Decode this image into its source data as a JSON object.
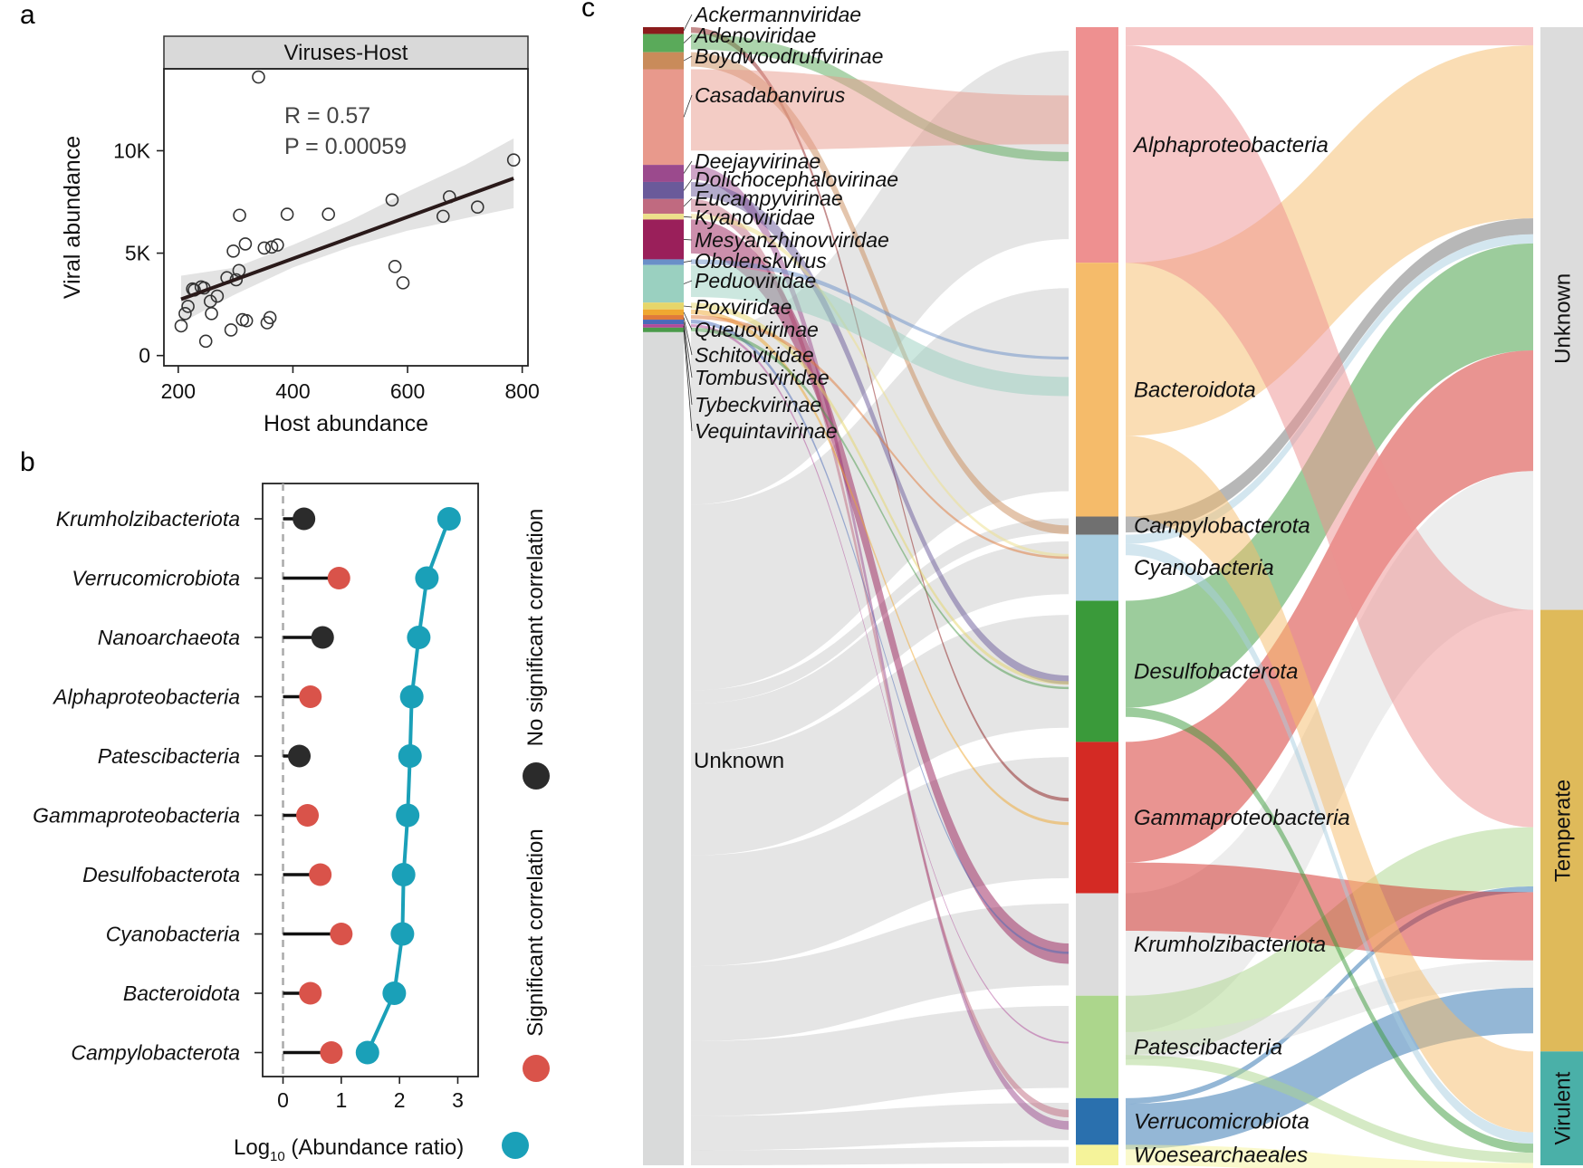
{
  "panels": {
    "a": "a",
    "b": "b",
    "c": "c"
  },
  "chart_data": [
    {
      "panel": "a",
      "type": "scatter",
      "title": "Viruses-Host",
      "xlabel": "Host abundance",
      "ylabel": "Viral abundance",
      "xlim": [
        175,
        810
      ],
      "ylim": [
        -500,
        14000
      ],
      "xticks": [
        200,
        400,
        600,
        800
      ],
      "yticks": [
        0,
        5000,
        10000
      ],
      "ytick_labels": [
        "0",
        "5K",
        "10K"
      ],
      "annotation": {
        "r_text": "R = 0.57",
        "p_text": "P = 0.00059"
      },
      "regression": {
        "x": [
          205,
          785
        ],
        "y": [
          2750,
          8650
        ]
      },
      "confidence_band": {
        "x": [
          205,
          300,
          400,
          500,
          600,
          700,
          785
        ],
        "lower": [
          1600,
          3000,
          4300,
          5300,
          6100,
          6700,
          7200
        ],
        "upper": [
          3900,
          4300,
          5400,
          6600,
          8000,
          9300,
          10600
        ]
      },
      "points": [
        [
          205,
          1450
        ],
        [
          212,
          2050
        ],
        [
          217,
          2400
        ],
        [
          225,
          3250
        ],
        [
          228,
          3200
        ],
        [
          240,
          3350
        ],
        [
          245,
          3300
        ],
        [
          248,
          700
        ],
        [
          256,
          2650
        ],
        [
          258,
          2050
        ],
        [
          268,
          2900
        ],
        [
          285,
          3800
        ],
        [
          292,
          1250
        ],
        [
          296,
          5100
        ],
        [
          301,
          3700
        ],
        [
          306,
          4150
        ],
        [
          307,
          6850
        ],
        [
          312,
          1750
        ],
        [
          317,
          5450
        ],
        [
          319,
          1700
        ],
        [
          340,
          13600
        ],
        [
          350,
          5250
        ],
        [
          355,
          1600
        ],
        [
          360,
          1850
        ],
        [
          363,
          5300
        ],
        [
          373,
          5400
        ],
        [
          390,
          6900
        ],
        [
          462,
          6900
        ],
        [
          573,
          7600
        ],
        [
          578,
          4350
        ],
        [
          592,
          3550
        ],
        [
          662,
          6800
        ],
        [
          673,
          7750
        ],
        [
          722,
          7250
        ],
        [
          785,
          9550
        ]
      ]
    },
    {
      "panel": "b",
      "type": "lollipop",
      "xlabel_main": "Log",
      "xlabel_sub": "10",
      "xlabel_rest": " (Abundance ratio)",
      "xlim": [
        -0.35,
        3.35
      ],
      "xticks": [
        0,
        1,
        2,
        3
      ],
      "categories": [
        "Krumholzibacteriota",
        "Verrucomicrobiota",
        "Nanoarchaeota",
        "Alphaproteobacteria",
        "Patescibacteria",
        "Gammaproteobacteria",
        "Desulfobacterota",
        "Cyanobacteria",
        "Bacteroidota",
        "Campylobacterota"
      ],
      "correlation_values": [
        0.36,
        0.96,
        0.68,
        0.47,
        0.28,
        0.42,
        0.64,
        1.0,
        0.47,
        0.83
      ],
      "significant": [
        false,
        true,
        false,
        true,
        false,
        true,
        true,
        true,
        true,
        true
      ],
      "abundance_ratio": [
        2.85,
        2.47,
        2.33,
        2.21,
        2.18,
        2.14,
        2.07,
        2.05,
        1.91,
        1.45
      ],
      "legend": {
        "no_sig": "No significant correlation",
        "sig": "Significant correlation"
      },
      "colors": {
        "sig": "#d9534a",
        "nosig": "#2b2b2b",
        "ratio": "#1aa0b8"
      }
    },
    {
      "panel": "c",
      "type": "sankey",
      "virus_nodes": [
        {
          "name": "Ackermannviridae",
          "color": "#8b1c1c",
          "frac": 0.006
        },
        {
          "name": "Adenoviridae",
          "color": "#5aaa5a",
          "frac": 0.016
        },
        {
          "name": "Boydwoodruffvirinae",
          "color": "#c98b5a",
          "frac": 0.015
        },
        {
          "name": "Casadabanvirus",
          "color": "#e8998c",
          "frac": 0.084
        },
        {
          "name": "Deejayvirinae",
          "color": "#9b4a8d",
          "frac": 0.015
        },
        {
          "name": "Dolichocephalovirinae",
          "color": "#6a5a9a",
          "frac": 0.015
        },
        {
          "name": "Eucampyvirinae",
          "color": "#c06a80",
          "frac": 0.013
        },
        {
          "name": "Kyanoviridae",
          "color": "#ede08a",
          "frac": 0.005
        },
        {
          "name": "Mesyanzhinovviridae",
          "color": "#9a1f5a",
          "frac": 0.035
        },
        {
          "name": "Obolenskvirus",
          "color": "#6a8fc8",
          "frac": 0.005
        },
        {
          "name": "Peduoviridae",
          "color": "#9ad0c0",
          "frac": 0.033
        },
        {
          "name": "Poxviridae",
          "color": "#e6d66a",
          "frac": 0.006
        },
        {
          "name": "Queuovirinae",
          "color": "#f0a830",
          "frac": 0.005
        },
        {
          "name": "Schitoviridae",
          "color": "#e07a3a",
          "frac": 0.004
        },
        {
          "name": "Tombusviridae",
          "color": "#4a6ab8",
          "frac": 0.004
        },
        {
          "name": "Tybeckvirinae",
          "color": "#b04a9a",
          "frac": 0.003
        },
        {
          "name": "Vequintavirinae",
          "color": "#4a9a4a",
          "frac": 0.004
        },
        {
          "name": "Unknown",
          "color": "#d9dada",
          "frac": 0.732
        }
      ],
      "host_nodes": [
        {
          "name": "Alphaproteobacteria",
          "color": "#ee9090",
          "frac": 0.207
        },
        {
          "name": "Bacteroidota",
          "color": "#f5bb6a",
          "frac": 0.223
        },
        {
          "name": "Campylobacterota",
          "color": "#707070",
          "frac": 0.016
        },
        {
          "name": "Cyanobacteria",
          "color": "#a8cde0",
          "frac": 0.058
        },
        {
          "name": "Desulfobacterota",
          "color": "#3a9a3a",
          "frac": 0.124
        },
        {
          "name": "Gammaproteobacteria",
          "color": "#d42a24",
          "frac": 0.133
        },
        {
          "name": "Krumholzibacteriota",
          "color": "#dcdcdc",
          "frac": 0.09
        },
        {
          "name": "Patescibacteria",
          "color": "#acd68c",
          "frac": 0.09
        },
        {
          "name": "Verrucomicrobiota",
          "color": "#2a70ae",
          "frac": 0.041
        },
        {
          "name": "Woesearchaeales",
          "color": "#f5f39a",
          "frac": 0.018
        }
      ],
      "lifestyle_nodes": [
        {
          "name": "Unknown",
          "color": "#dcdcdc",
          "frac": 0.512
        },
        {
          "name": "Temperate",
          "color": "#dfba5a",
          "frac": 0.388
        },
        {
          "name": "Virulent",
          "color": "#4ab0a8",
          "frac": 0.1
        }
      ],
      "host_to_lifestyle": [
        {
          "host": "Alphaproteobacteria",
          "lifestyle": "Unknown",
          "frac": 0.016
        },
        {
          "host": "Bacteroidota",
          "lifestyle": "Unknown",
          "frac": 0.152
        },
        {
          "host": "Campylobacterota",
          "lifestyle": "Unknown",
          "frac": 0.014
        },
        {
          "host": "Cyanobacteria",
          "lifestyle": "Unknown",
          "frac": 0.008
        },
        {
          "host": "Desulfobacterota",
          "lifestyle": "Unknown",
          "frac": 0.094
        },
        {
          "host": "Gammaproteobacteria",
          "lifestyle": "Unknown",
          "frac": 0.106
        },
        {
          "host": "Krumholzibacteriota",
          "lifestyle": "Unknown",
          "frac": 0.122
        },
        {
          "host": "Alphaproteobacteria",
          "lifestyle": "Temperate",
          "frac": 0.191
        },
        {
          "host": "Patescibacteria",
          "lifestyle": "Temperate",
          "frac": 0.052
        },
        {
          "host": "Verrucomicrobiota",
          "lifestyle": "Temperate",
          "frac": 0.005
        },
        {
          "host": "Gammaproteobacteria",
          "lifestyle": "Temperate",
          "frac": 0.06
        },
        {
          "host": "Krumholzibacteriota",
          "lifestyle": "Temperate",
          "frac": 0.024
        },
        {
          "host": "Verrucomicrobiota",
          "lifestyle": "Temperate",
          "frac": 0.04
        },
        {
          "host": "Bacteroidota",
          "lifestyle": "Virulent",
          "frac": 0.071
        },
        {
          "host": "Cyanobacteria",
          "lifestyle": "Virulent",
          "frac": 0.01
        },
        {
          "host": "Desulfobacterota",
          "lifestyle": "Virulent",
          "frac": 0.008
        },
        {
          "host": "Patescibacteria",
          "lifestyle": "Virulent",
          "frac": 0.009
        },
        {
          "host": "Woesearchaeales",
          "lifestyle": "Virulent",
          "frac": 0.018
        }
      ]
    }
  ]
}
